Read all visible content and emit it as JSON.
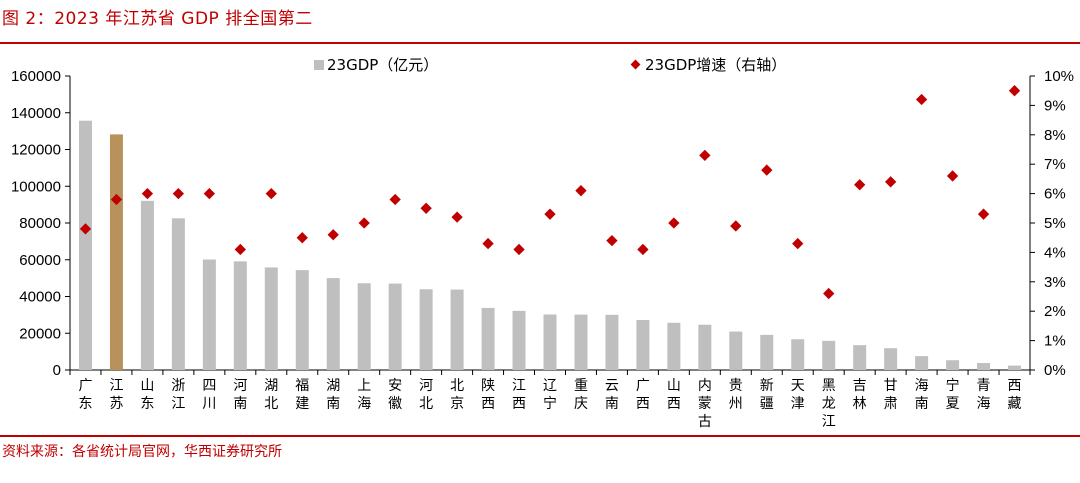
{
  "figure": {
    "title": "图 2：2023 年江苏省 GDP 排全国第二",
    "source": "资料来源：各省统计局官网，华西证券研究所"
  },
  "chart_data": {
    "type": "bar",
    "title": "",
    "categories": [
      "广东",
      "江苏",
      "山东",
      "浙江",
      "四川",
      "河南",
      "湖北",
      "福建",
      "湖南",
      "上海",
      "安徽",
      "河北",
      "北京",
      "陕西",
      "江西",
      "辽宁",
      "重庆",
      "云南",
      "广西",
      "山西",
      "内蒙古",
      "贵州",
      "新疆",
      "天津",
      "黑龙江",
      "吉林",
      "甘肃",
      "海南",
      "宁夏",
      "青海",
      "西藏"
    ],
    "series": [
      {
        "name": "23GDP（亿元）",
        "kind": "bar",
        "axis": "left",
        "color": "#bfbfbf",
        "highlight_color": "#b8925a",
        "highlight_index": 1,
        "values": [
          135673,
          128222,
          92069,
          82553,
          60133,
          59132,
          55804,
          54355,
          50013,
          47219,
          47051,
          43944,
          43761,
          33786,
          32200,
          30209,
          30146,
          30021,
          27202,
          25698,
          24627,
          20913,
          19126,
          16737,
          15884,
          13531,
          11864,
          7551,
          5315,
          3800,
          2393
        ]
      },
      {
        "name": "23GDP增速（右轴）",
        "kind": "marker",
        "axis": "right",
        "color": "#c00000",
        "values": [
          4.8,
          5.8,
          6.0,
          6.0,
          6.0,
          4.1,
          6.0,
          4.5,
          4.6,
          5.0,
          5.8,
          5.5,
          5.2,
          4.3,
          4.1,
          5.3,
          6.1,
          4.4,
          4.1,
          5.0,
          7.3,
          4.9,
          6.8,
          4.3,
          2.6,
          6.3,
          6.4,
          9.2,
          6.6,
          5.3,
          9.5
        ]
      }
    ],
    "y_left": {
      "min": 0,
      "max": 160000,
      "ticks": [
        0,
        20000,
        40000,
        60000,
        80000,
        100000,
        120000,
        140000,
        160000
      ],
      "tick_labels": [
        "0",
        "20000",
        "40000",
        "60000",
        "80000",
        "100000",
        "120000",
        "140000",
        "160000"
      ]
    },
    "y_right": {
      "min": 0,
      "max": 10,
      "ticks": [
        0,
        1,
        2,
        3,
        4,
        5,
        6,
        7,
        8,
        9,
        10
      ],
      "tick_labels": [
        "0%",
        "1%",
        "2%",
        "3%",
        "4%",
        "5%",
        "6%",
        "7%",
        "8%",
        "9%",
        "10%"
      ]
    },
    "grid": false,
    "legend": "top-center"
  }
}
